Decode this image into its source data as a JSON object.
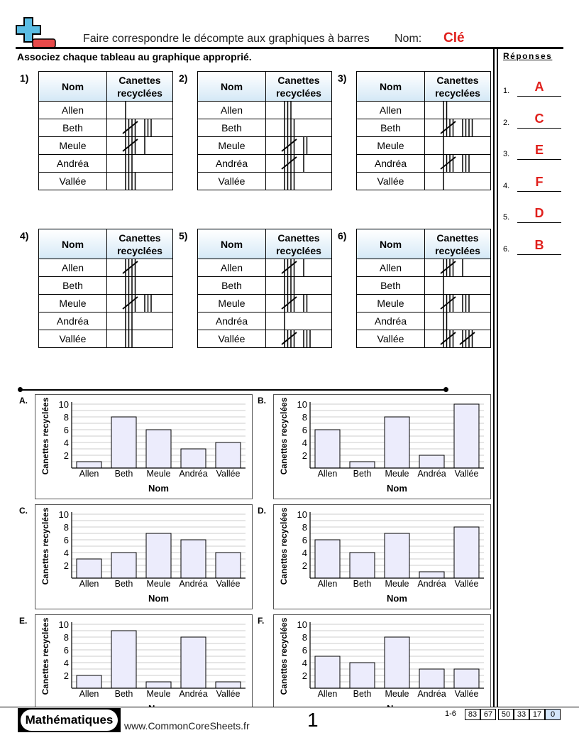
{
  "header": {
    "title": "Faire correspondre le décompte aux graphiques à barres",
    "name_label": "Nom:",
    "name_value": "Clé",
    "logo_icon": "plus-minus-icon"
  },
  "instructions": "Associez chaque tableau au graphique approprié.",
  "answers": {
    "heading": "Réponses",
    "items": [
      {
        "n": "1.",
        "v": "A"
      },
      {
        "n": "2.",
        "v": "C"
      },
      {
        "n": "3.",
        "v": "E"
      },
      {
        "n": "4.",
        "v": "F"
      },
      {
        "n": "5.",
        "v": "D"
      },
      {
        "n": "6.",
        "v": "B"
      }
    ]
  },
  "table_headers": {
    "name": "Nom",
    "count": "Canettes recyclées"
  },
  "names": [
    "Allen",
    "Beth",
    "Meule",
    "Andréa",
    "Vallée"
  ],
  "tables": [
    {
      "label": "1)",
      "tallies": [
        1,
        8,
        6,
        3,
        4
      ]
    },
    {
      "label": "2)",
      "tallies": [
        3,
        4,
        7,
        6,
        4
      ]
    },
    {
      "label": "3)",
      "tallies": [
        2,
        9,
        1,
        8,
        1
      ]
    },
    {
      "label": "4)",
      "tallies": [
        5,
        4,
        8,
        3,
        3
      ]
    },
    {
      "label": "5)",
      "tallies": [
        6,
        4,
        7,
        1,
        8
      ]
    },
    {
      "label": "6)",
      "tallies": [
        6,
        1,
        8,
        2,
        10
      ]
    }
  ],
  "chart_data": [
    {
      "label": "A.",
      "type": "bar",
      "categories": [
        "Allen",
        "Beth",
        "Meule",
        "Andréa",
        "Vallée"
      ],
      "values": [
        1,
        8,
        6,
        3,
        4
      ],
      "xlabel": "Nom",
      "ylabel": "Canettes recyclées",
      "yticks": [
        2,
        4,
        6,
        8,
        10
      ],
      "ylim": [
        0,
        10
      ],
      "grid": true
    },
    {
      "label": "B.",
      "type": "bar",
      "categories": [
        "Allen",
        "Beth",
        "Meule",
        "Andréa",
        "Vallée"
      ],
      "values": [
        6,
        1,
        8,
        2,
        10
      ],
      "xlabel": "Nom",
      "ylabel": "Canettes recyclées",
      "yticks": [
        2,
        4,
        6,
        8,
        10
      ],
      "ylim": [
        0,
        10
      ],
      "grid": true
    },
    {
      "label": "C.",
      "type": "bar",
      "categories": [
        "Allen",
        "Beth",
        "Meule",
        "Andréa",
        "Vallée"
      ],
      "values": [
        3,
        4,
        7,
        6,
        4
      ],
      "xlabel": "Nom",
      "ylabel": "Canettes recyclées",
      "yticks": [
        2,
        4,
        6,
        8,
        10
      ],
      "ylim": [
        0,
        10
      ],
      "grid": true
    },
    {
      "label": "D.",
      "type": "bar",
      "categories": [
        "Allen",
        "Beth",
        "Meule",
        "Andréa",
        "Vallée"
      ],
      "values": [
        6,
        4,
        7,
        1,
        8
      ],
      "xlabel": "Nom",
      "ylabel": "Canettes recyclées",
      "yticks": [
        2,
        4,
        6,
        8,
        10
      ],
      "ylim": [
        0,
        10
      ],
      "grid": true
    },
    {
      "label": "E.",
      "type": "bar",
      "categories": [
        "Allen",
        "Beth",
        "Meule",
        "Andréa",
        "Vallée"
      ],
      "values": [
        2,
        9,
        1,
        8,
        1
      ],
      "xlabel": "Nom",
      "ylabel": "Canettes recyclées",
      "yticks": [
        2,
        4,
        6,
        8,
        10
      ],
      "ylim": [
        0,
        10
      ],
      "grid": true
    },
    {
      "label": "F.",
      "type": "bar",
      "categories": [
        "Allen",
        "Beth",
        "Meule",
        "Andréa",
        "Vallée"
      ],
      "values": [
        5,
        4,
        8,
        3,
        3
      ],
      "xlabel": "Nom",
      "ylabel": "Canettes recyclées",
      "yticks": [
        2,
        4,
        6,
        8,
        10
      ],
      "ylim": [
        0,
        10
      ],
      "grid": true
    }
  ],
  "colors": {
    "key": "#e0201c",
    "bar_fill": "#ececfc",
    "header_grad": "#d4e8f6",
    "plus": "#5bbde4",
    "minus": "#e84a4a"
  },
  "footer": {
    "brand": "Mathématiques",
    "url": "www.CommonCoreSheets.fr",
    "page": "1",
    "range": "1-6",
    "scores": [
      "83",
      "67",
      "50",
      "33",
      "17",
      "0"
    ]
  }
}
